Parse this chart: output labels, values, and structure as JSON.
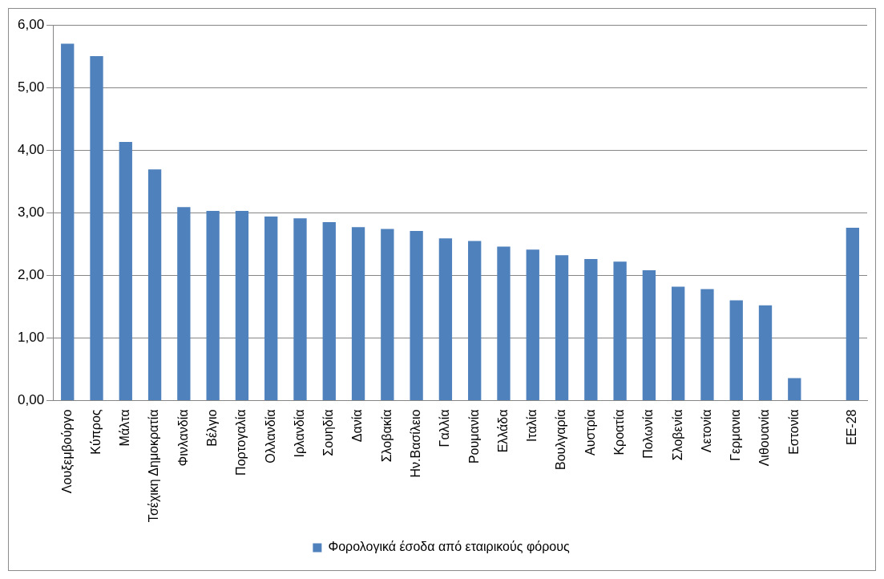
{
  "chart_data": {
    "type": "bar",
    "categories": [
      "Λουξεμβούργο",
      "Κύπρος",
      "Μάλτα",
      "Τσέχικη Δημοκρατία",
      "Φινλανδία",
      "Βέλγιο",
      "Πορτογαλία",
      "Ολλανδία",
      "Ιρλανδία",
      "Σουηδία",
      "Δανία",
      "Σλοβακία",
      "Ην.Βασίλειο",
      "Γαλλία",
      "Ρουμανία",
      "Ελλάδα",
      "Ιταλία",
      "Βουλγαρία",
      "Αυστρία",
      "Κροατία",
      "Πολωνία",
      "Σλοβενία",
      "Λετονία",
      "Γερμανια",
      "Λιθουανία",
      "Εστονία",
      null,
      "ΕΕ-28"
    ],
    "series": [
      {
        "name": "Φορολογικά έσοδα από εταιρικούς φόρους",
        "color": "#4f81bd",
        "values": [
          5.7,
          5.5,
          4.13,
          3.69,
          3.09,
          3.03,
          3.03,
          2.94,
          2.91,
          2.85,
          2.77,
          2.74,
          2.71,
          2.59,
          2.55,
          2.46,
          2.41,
          2.32,
          2.26,
          2.22,
          2.08,
          1.82,
          1.78,
          1.6,
          1.52,
          0.36,
          null,
          2.76
        ]
      }
    ],
    "ylim": [
      0,
      6
    ],
    "yticks": [
      {
        "value": 0,
        "label": "0,00"
      },
      {
        "value": 1,
        "label": "1,00"
      },
      {
        "value": 2,
        "label": "2,00"
      },
      {
        "value": 3,
        "label": "3,00"
      },
      {
        "value": 4,
        "label": "4,00"
      },
      {
        "value": 5,
        "label": "5,00"
      },
      {
        "value": 6,
        "label": "6,00"
      }
    ],
    "grid": "y",
    "legend": "bottom"
  }
}
